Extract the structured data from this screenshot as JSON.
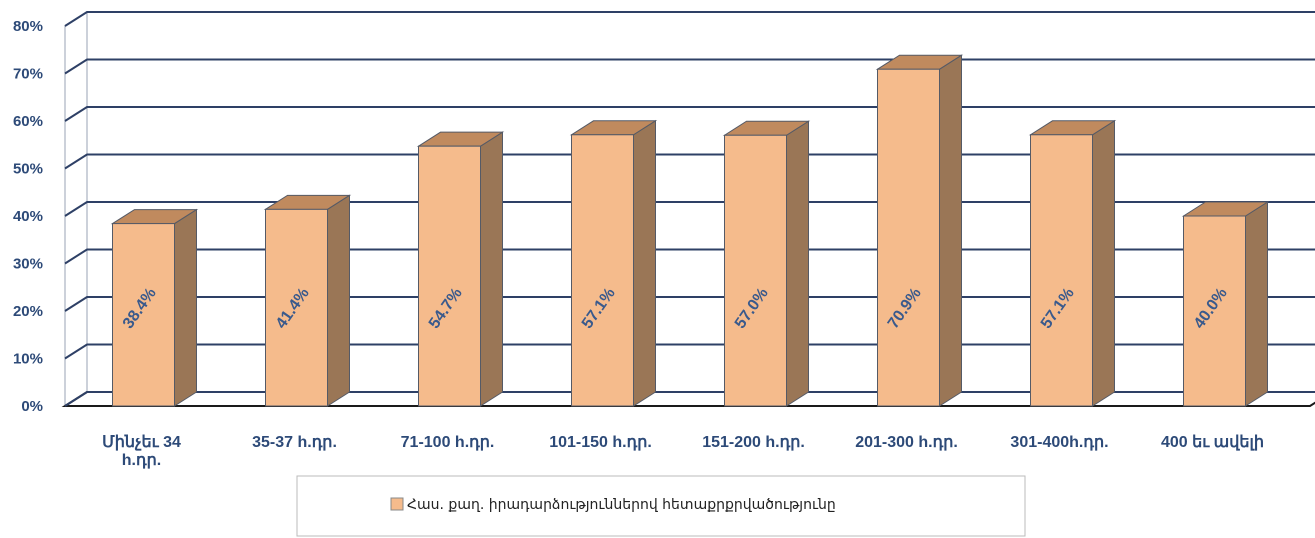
{
  "chart_data": {
    "type": "bar",
    "categories": [
      "Մինչեւ 34 h.դր.",
      "35-37 h.դր.",
      "71-100 h.դր.",
      "101-150 h.դր.",
      "151-200 h.դր.",
      "201-300 h.դր.",
      "301-400h.դր.",
      "400 եւ ավելի"
    ],
    "category_lines": [
      [
        "Մինչեւ 34",
        "h.դր."
      ],
      [
        "35-37 h.դր."
      ],
      [
        "71-100 h.դր."
      ],
      [
        "101-150 h.դր."
      ],
      [
        "151-200 h.դր."
      ],
      [
        "201-300 h.դր."
      ],
      [
        "301-400h.դր."
      ],
      [
        "400 եւ ավելի"
      ]
    ],
    "series": [
      {
        "name": "Հաս. քաղ. իրադարձություններով հետաքրքրվածությունը",
        "values": [
          38.4,
          41.4,
          54.7,
          57.1,
          57.0,
          70.9,
          57.1,
          40.0
        ],
        "labels": [
          "38.4%",
          "41.4%",
          "54.7%",
          "57.1%",
          "57.0%",
          "70.9%",
          "57.1%",
          "40.0%"
        ]
      }
    ],
    "ylim": [
      0,
      80
    ],
    "yticks": [
      "0%",
      "10%",
      "20%",
      "30%",
      "40%",
      "50%",
      "60%",
      "70%",
      "80%"
    ],
    "grid": true,
    "legend_position": "bottom",
    "colors": {
      "front": "#f5bb8c",
      "side": "#9a7656",
      "top": "#c08a5e",
      "outline": "#555a66",
      "grid": "#2e4066"
    }
  }
}
